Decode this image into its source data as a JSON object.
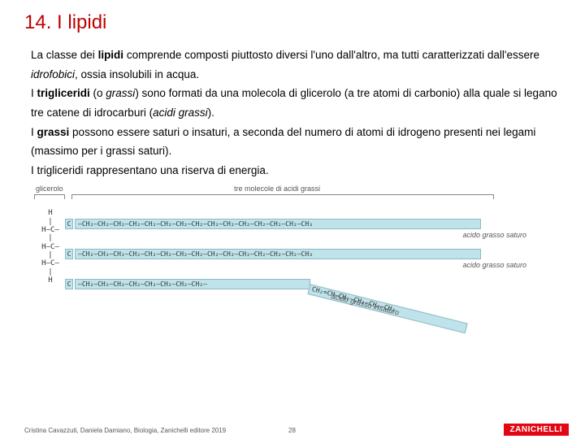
{
  "title": "14. I lipidi",
  "paragraph_html": "La classe dei <b>lipidi</b> comprende composti piuttosto diversi l'uno dall'altro, ma tutti caratterizzati dall'essere <i>idrofobici</i>, ossia insolubili in acqua.<br>I <b>trigliceridi</b> (o <i>grassi</i>) sono formati da una molecola di glicerolo (a tre atomi di carbonio) alla quale si legano tre catene di idrocarburi (<i>acidi grassi</i>).<br>I <b>grassi</b> possono essere saturi o insaturi, a seconda del numero di atomi di idrogeno presenti nei legami (massimo per i grassi saturi).<br>I trigliceridi rappresentano una riserva di energia.",
  "diagram": {
    "label_glycerol": "glicerolo",
    "label_fatty": "tre molecole di acidi grassi",
    "label_saturo": "acido grasso saturo",
    "label_insaturo": "acido grasso insaturo",
    "glycerol_column": "H\n|\nH—C—\n|\nH—C—\n|\nH—C—\n|\nH",
    "chain_repeat": "—CH₂—CH₂—CH₂—CH₂—CH₂—CH₂—CH₂—CH₂—CH₂—CH₂—CH₂—CH₂—CH₂—CH₂—CH₃",
    "chain_mid": "—CH₂—CH₂—CH₂—CH₂—CH₂—CH₂—CH₂—CH₂—",
    "unsat_tail": "CH₂=CH—CH₂—CH₂—CH₂—CH₃",
    "colors": {
      "chain_fill": "#bfe3ea",
      "chain_border": "#8fb9c2",
      "title_color": "#c00000",
      "logo_bg": "#e30613"
    }
  },
  "footer": {
    "citation": "Cristina Cavazzuti, Daniela Damiano, Biologia, Zanichelli editore 2019",
    "page": "28",
    "logo": "ZANICHELLI"
  }
}
